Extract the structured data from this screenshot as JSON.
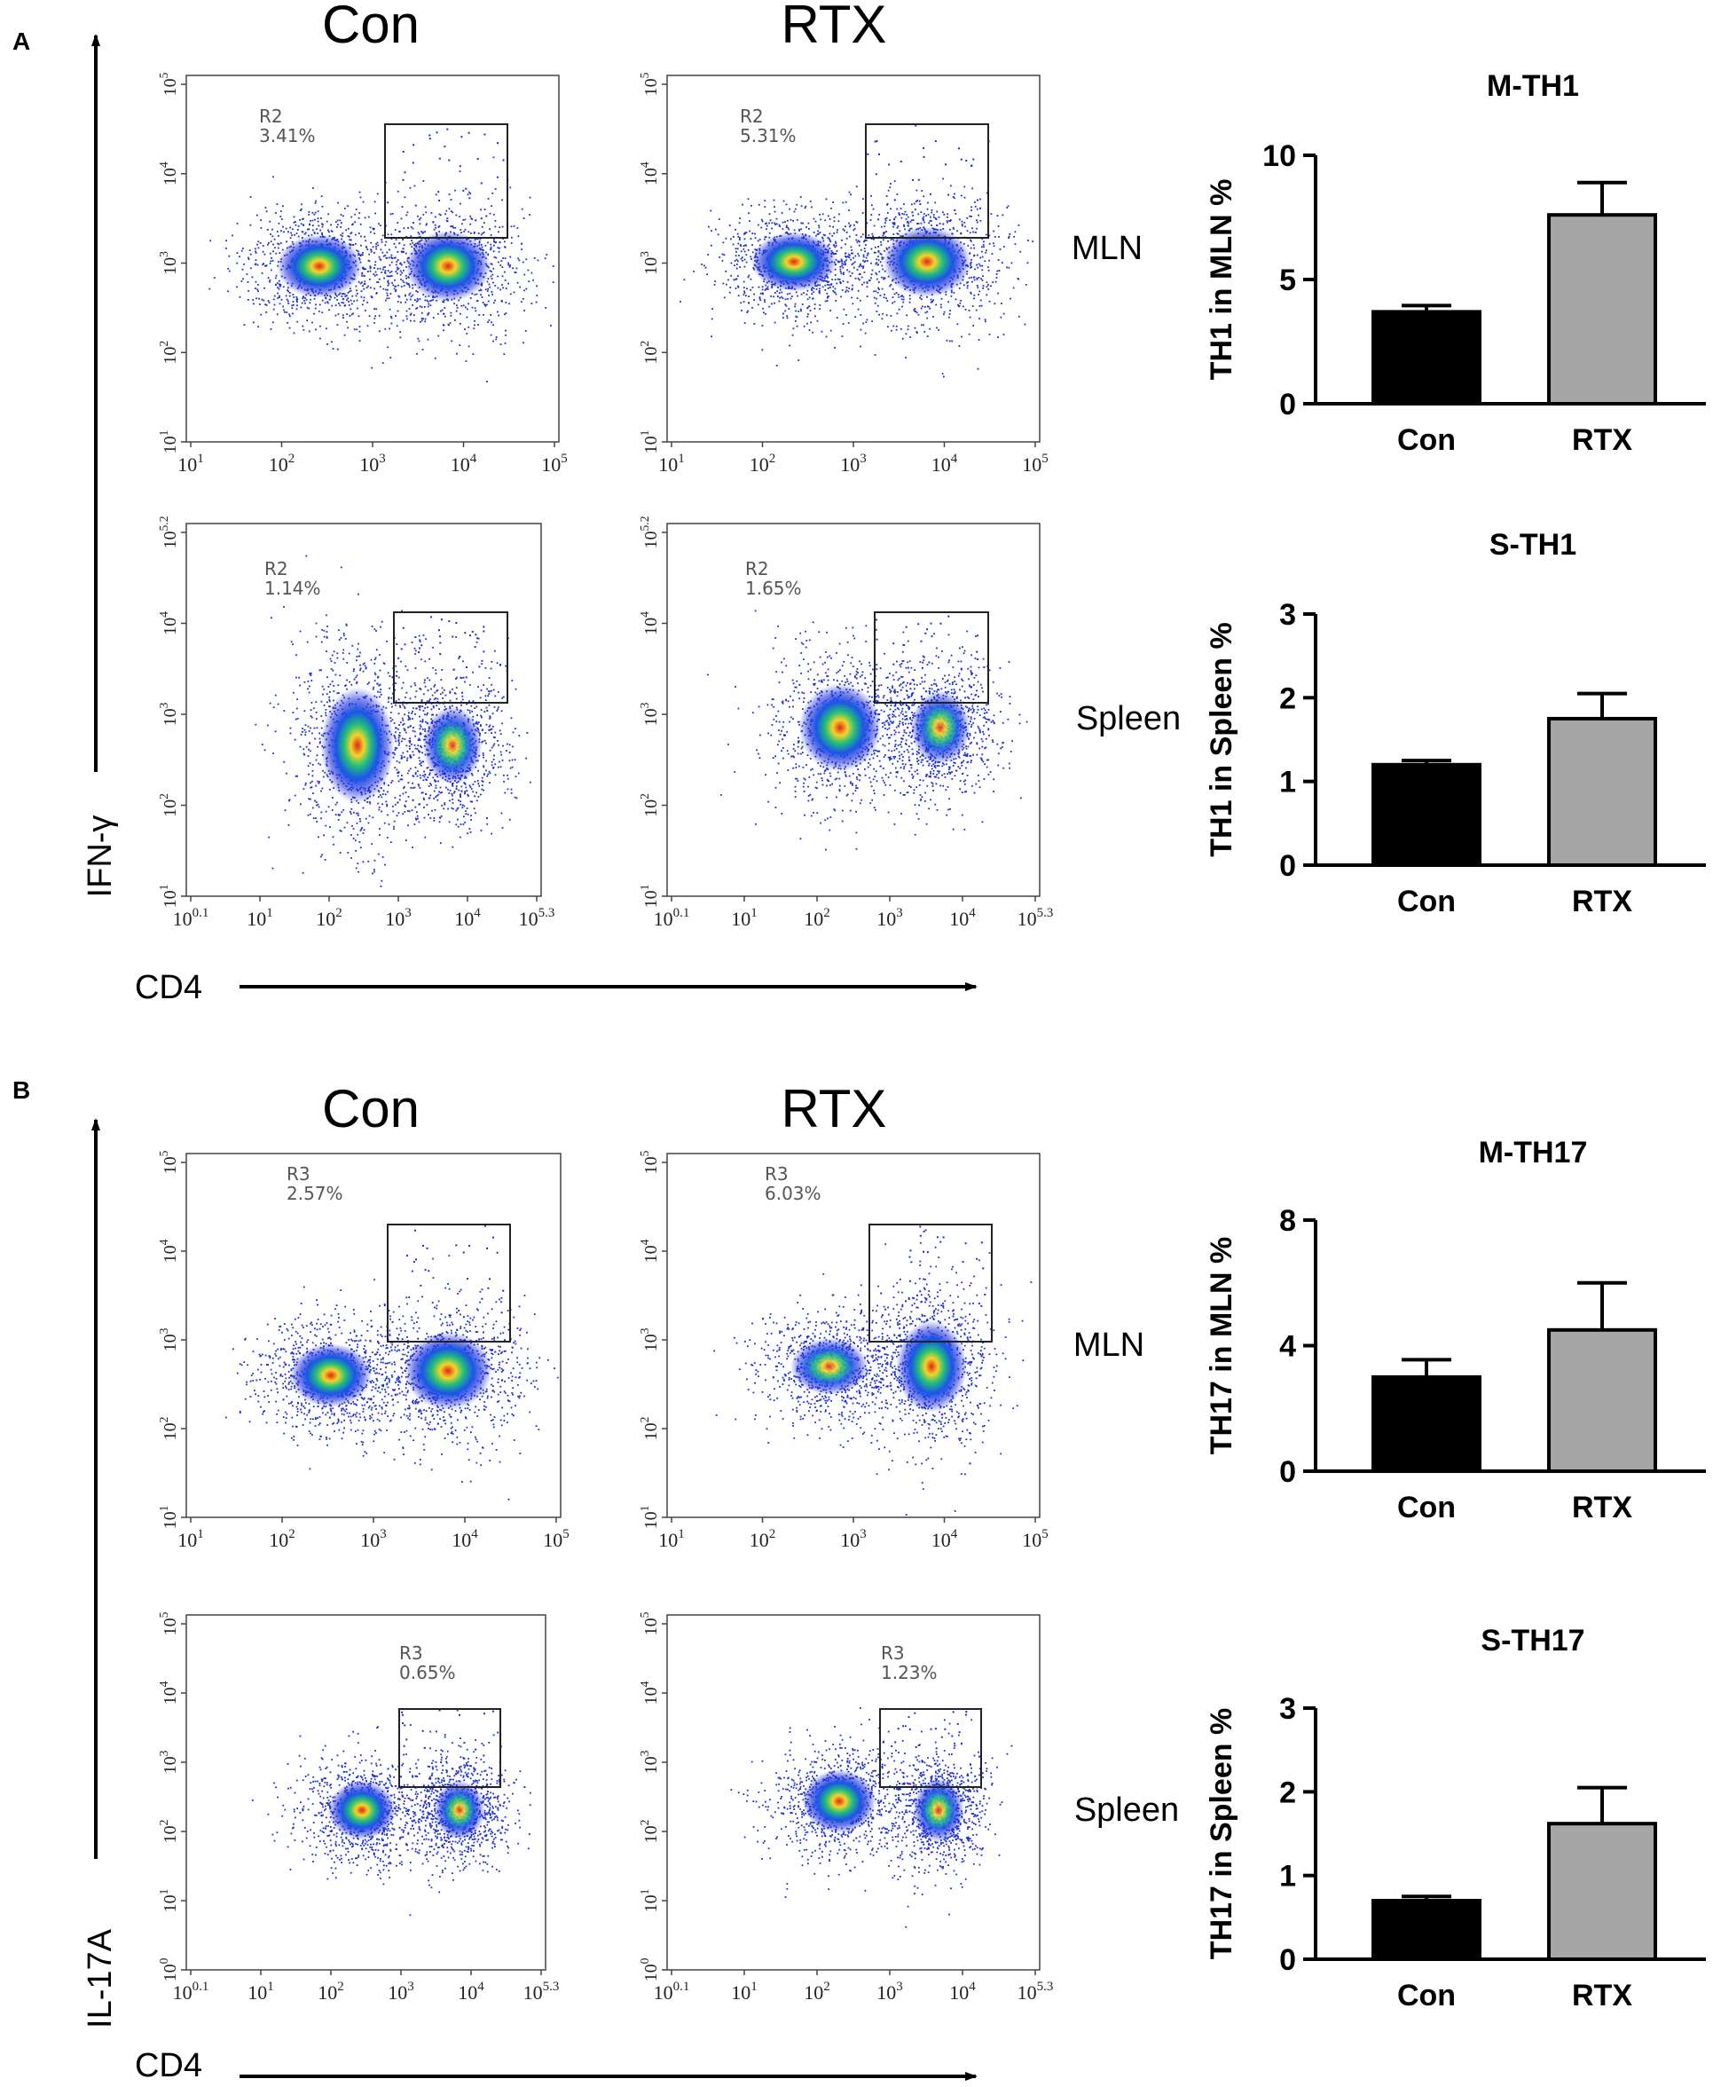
{
  "panels": [
    {
      "id": "A",
      "label": "A",
      "yaxis_label": "IFN-γ",
      "xaxis_label": "CD4",
      "col_titles": [
        "Con",
        "RTX"
      ],
      "row_labels": [
        "MLN",
        "Spleen"
      ],
      "plots": [
        {
          "name": "A-MLN-Con",
          "gate": "R2",
          "pct": "3.41%",
          "yticks": [
            "10^1",
            "10^2",
            "10^3",
            "10^4",
            "10^5"
          ],
          "xticks": [
            "10^1",
            "10^2",
            "10^3",
            "10^4",
            "10^5"
          ]
        },
        {
          "name": "A-MLN-RTX",
          "gate": "R2",
          "pct": "5.31%",
          "yticks": [
            "10^1",
            "10^2",
            "10^3",
            "10^4",
            "10^5"
          ],
          "xticks": [
            "10^1",
            "10^2",
            "10^3",
            "10^4",
            "10^5"
          ]
        },
        {
          "name": "A-Spleen-Con",
          "gate": "R2",
          "pct": "1.14%",
          "yticks": [
            "10^1",
            "10^2",
            "10^3",
            "10^4",
            "10^5.2"
          ],
          "xticks": [
            "10^0.1",
            "10^1",
            "10^2",
            "10^3",
            "10^4",
            "10^5.3"
          ]
        },
        {
          "name": "A-Spleen-RTX",
          "gate": "R2",
          "pct": "1.65%",
          "yticks": [
            "10^1",
            "10^2",
            "10^3",
            "10^4",
            "10^5.2"
          ],
          "xticks": [
            "10^0.1",
            "10^1",
            "10^2",
            "10^3",
            "10^4",
            "10^5.3"
          ]
        }
      ]
    },
    {
      "id": "B",
      "label": "B",
      "yaxis_label": "IL-17A",
      "xaxis_label": "CD4",
      "col_titles": [
        "Con",
        "RTX"
      ],
      "row_labels": [
        "MLN",
        "Spleen"
      ],
      "plots": [
        {
          "name": "B-MLN-Con",
          "gate": "R3",
          "pct": "2.57%",
          "yticks": [
            "10^1",
            "10^2",
            "10^3",
            "10^4",
            "10^5"
          ],
          "xticks": [
            "10^1",
            "10^2",
            "10^3",
            "10^4",
            "10^5"
          ]
        },
        {
          "name": "B-MLN-RTX",
          "gate": "R3",
          "pct": "6.03%",
          "yticks": [
            "10^1",
            "10^2",
            "10^3",
            "10^4",
            "10^5"
          ],
          "xticks": [
            "10^1",
            "10^2",
            "10^3",
            "10^4",
            "10^5"
          ]
        },
        {
          "name": "B-Spleen-Con",
          "gate": "R3",
          "pct": "0.65%",
          "yticks": [
            "10^0",
            "10^1",
            "10^2",
            "10^3",
            "10^4",
            "10^5"
          ],
          "xticks": [
            "10^0.1",
            "10^1",
            "10^2",
            "10^3",
            "10^4",
            "10^5.3"
          ]
        },
        {
          "name": "B-Spleen-RTX",
          "gate": "R3",
          "pct": "1.23%",
          "yticks": [
            "10^0",
            "10^1",
            "10^2",
            "10^3",
            "10^4",
            "10^5"
          ],
          "xticks": [
            "10^0.1",
            "10^1",
            "10^2",
            "10^3",
            "10^4",
            "10^5.3"
          ]
        }
      ]
    }
  ],
  "chart_data": [
    {
      "type": "bar",
      "title": "M-TH1",
      "ylabel": "TH1 in MLN %",
      "categories": [
        "Con",
        "RTX"
      ],
      "values": [
        3.7,
        7.6
      ],
      "errors": [
        0.25,
        1.3
      ],
      "colors": [
        "#000000",
        "#a6a6a6"
      ],
      "ylim": [
        0,
        10
      ],
      "yticks": [
        0,
        5,
        10
      ]
    },
    {
      "type": "bar",
      "title": "S-TH1",
      "ylabel": "TH1 in Spleen %",
      "categories": [
        "Con",
        "RTX"
      ],
      "values": [
        1.2,
        1.75
      ],
      "errors": [
        0.05,
        0.3
      ],
      "colors": [
        "#000000",
        "#a6a6a6"
      ],
      "ylim": [
        0,
        3
      ],
      "yticks": [
        0,
        1,
        2,
        3
      ]
    },
    {
      "type": "bar",
      "title": "M-TH17",
      "ylabel": "TH17 in MLN %",
      "categories": [
        "Con",
        "RTX"
      ],
      "values": [
        3.0,
        4.5
      ],
      "errors": [
        0.55,
        1.5
      ],
      "colors": [
        "#000000",
        "#a6a6a6"
      ],
      "ylim": [
        0,
        8
      ],
      "yticks": [
        0,
        4,
        8
      ]
    },
    {
      "type": "bar",
      "title": "S-TH17",
      "ylabel": "TH17 in Spleen %",
      "categories": [
        "Con",
        "RTX"
      ],
      "values": [
        0.7,
        1.62
      ],
      "errors": [
        0.05,
        0.43
      ],
      "colors": [
        "#000000",
        "#a6a6a6"
      ],
      "ylim": [
        0,
        3
      ],
      "yticks": [
        0,
        1,
        2,
        3
      ]
    }
  ]
}
